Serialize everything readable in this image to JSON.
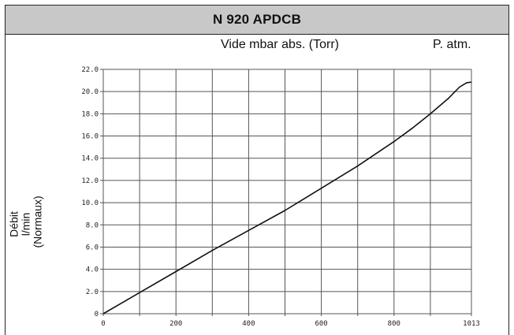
{
  "chart_data": {
    "type": "line",
    "title": "N 920 APDCB",
    "xlabel": "Vide mbar abs. (Torr)",
    "x_end_label": "P. atm.",
    "ylabel": "Débit l/min (Normaux)",
    "xlim": [
      0,
      1013
    ],
    "ylim": [
      0,
      22
    ],
    "x_ticks": [
      0,
      200,
      400,
      600,
      800,
      1013
    ],
    "x_tick_labels": [
      "0",
      "200",
      "400",
      "600",
      "800",
      "1013"
    ],
    "y_ticks": [
      0,
      2,
      4,
      6,
      8,
      10,
      12,
      14,
      16,
      18,
      20,
      22
    ],
    "y_tick_labels": [
      "0",
      "2.0",
      "4.0",
      "6.0",
      "8.0",
      "10.0",
      "12.0",
      "14.0",
      "16.0",
      "18.0",
      "20.0",
      "22.0"
    ],
    "x_grid": [
      0,
      100,
      200,
      300,
      400,
      500,
      600,
      700,
      800,
      900,
      1013
    ],
    "grid": true,
    "series": [
      {
        "x": [
          0,
          50,
          100,
          200,
          300,
          400,
          500,
          600,
          700,
          800,
          850,
          900,
          950,
          980,
          1000,
          1013
        ],
        "y": [
          0,
          0.95,
          1.9,
          3.8,
          5.7,
          7.5,
          9.3,
          11.3,
          13.3,
          15.5,
          16.7,
          18.0,
          19.4,
          20.4,
          20.8,
          20.85
        ]
      }
    ]
  }
}
